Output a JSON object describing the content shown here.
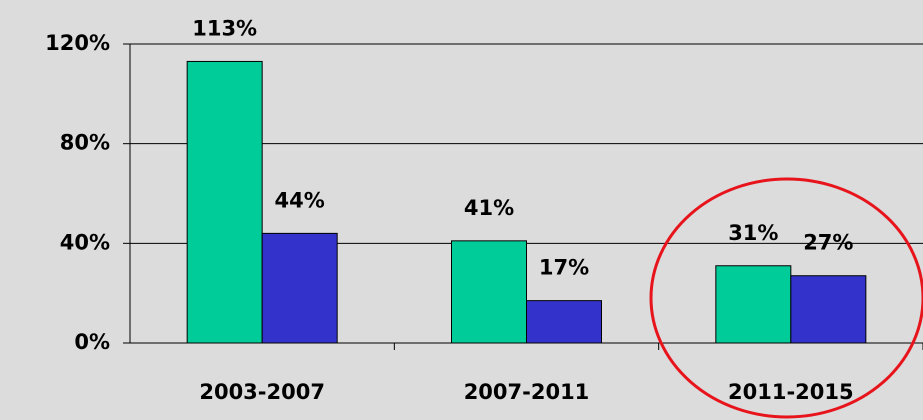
{
  "chart_data": {
    "type": "bar",
    "categories": [
      "2003-2007",
      "2007-2011",
      "2011-2015"
    ],
    "series": [
      {
        "color": "#00cc99",
        "values": [
          113,
          41,
          31
        ],
        "value_labels": [
          "113%",
          "41%",
          "31%"
        ]
      },
      {
        "color": "#3333cc",
        "values": [
          44,
          17,
          27
        ],
        "value_labels": [
          "44%",
          "17%",
          "27%"
        ]
      }
    ],
    "ylim": [
      0,
      120
    ],
    "yticks": [
      {
        "value": 0,
        "label": "0%"
      },
      {
        "value": 40,
        "label": "40%"
      },
      {
        "value": 80,
        "label": "80%"
      },
      {
        "value": 120,
        "label": "120%"
      }
    ],
    "grid": true
  }
}
